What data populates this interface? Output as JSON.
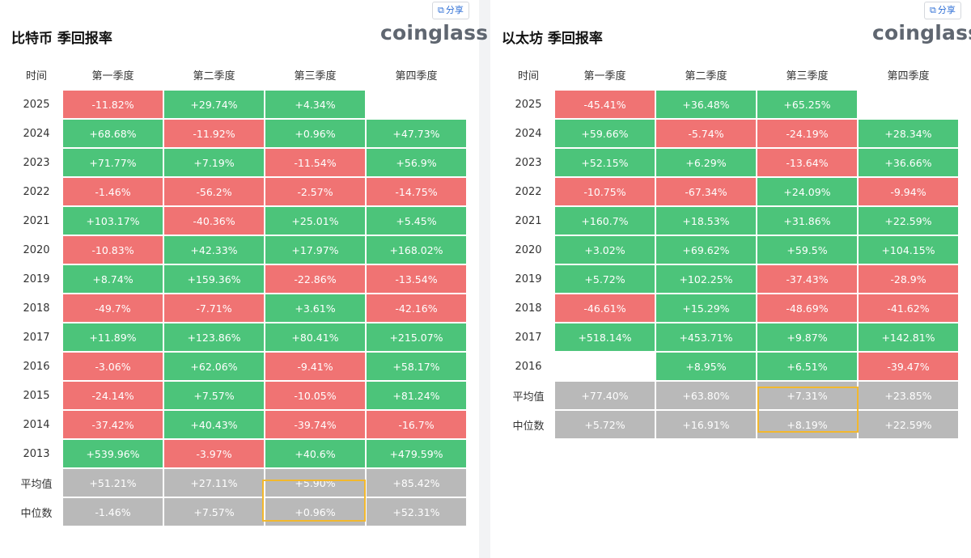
{
  "btc": {
    "title": "比特币 季回报率",
    "logo": "coinglass",
    "share_label": "分享",
    "share_icon": "share-icon",
    "headers": [
      "时间",
      "第一季度",
      "第二季度",
      "第三季度",
      "第四季度"
    ],
    "rows": [
      {
        "label": "2025",
        "cells": [
          "-11.82%",
          "+29.74%",
          "+4.34%",
          ""
        ]
      },
      {
        "label": "2024",
        "cells": [
          "+68.68%",
          "-11.92%",
          "+0.96%",
          "+47.73%"
        ]
      },
      {
        "label": "2023",
        "cells": [
          "+71.77%",
          "+7.19%",
          "-11.54%",
          "+56.9%"
        ]
      },
      {
        "label": "2022",
        "cells": [
          "-1.46%",
          "-56.2%",
          "-2.57%",
          "-14.75%"
        ]
      },
      {
        "label": "2021",
        "cells": [
          "+103.17%",
          "-40.36%",
          "+25.01%",
          "+5.45%"
        ]
      },
      {
        "label": "2020",
        "cells": [
          "-10.83%",
          "+42.33%",
          "+17.97%",
          "+168.02%"
        ]
      },
      {
        "label": "2019",
        "cells": [
          "+8.74%",
          "+159.36%",
          "-22.86%",
          "-13.54%"
        ]
      },
      {
        "label": "2018",
        "cells": [
          "-49.7%",
          "-7.71%",
          "+3.61%",
          "-42.16%"
        ]
      },
      {
        "label": "2017",
        "cells": [
          "+11.89%",
          "+123.86%",
          "+80.41%",
          "+215.07%"
        ]
      },
      {
        "label": "2016",
        "cells": [
          "-3.06%",
          "+62.06%",
          "-9.41%",
          "+58.17%"
        ]
      },
      {
        "label": "2015",
        "cells": [
          "-24.14%",
          "+7.57%",
          "-10.05%",
          "+81.24%"
        ]
      },
      {
        "label": "2014",
        "cells": [
          "-37.42%",
          "+40.43%",
          "-39.74%",
          "-16.7%"
        ]
      },
      {
        "label": "2013",
        "cells": [
          "+539.96%",
          "-3.97%",
          "+40.6%",
          "+479.59%"
        ]
      }
    ],
    "summary": [
      {
        "label": "平均值",
        "cells": [
          "+51.21%",
          "+27.11%",
          "+5.90%",
          "+85.42%"
        ]
      },
      {
        "label": "中位数",
        "cells": [
          "-1.46%",
          "+7.57%",
          "+0.96%",
          "+52.31%"
        ]
      }
    ]
  },
  "eth": {
    "title": "以太坊 季回报率",
    "logo": "coinglass",
    "share_label": "分享",
    "share_icon": "share-icon",
    "headers": [
      "时间",
      "第一季度",
      "第二季度",
      "第三季度",
      "第四季度"
    ],
    "rows": [
      {
        "label": "2025",
        "cells": [
          "-45.41%",
          "+36.48%",
          "+65.25%",
          ""
        ]
      },
      {
        "label": "2024",
        "cells": [
          "+59.66%",
          "-5.74%",
          "-24.19%",
          "+28.34%"
        ]
      },
      {
        "label": "2023",
        "cells": [
          "+52.15%",
          "+6.29%",
          "-13.64%",
          "+36.66%"
        ]
      },
      {
        "label": "2022",
        "cells": [
          "-10.75%",
          "-67.34%",
          "+24.09%",
          "-9.94%"
        ]
      },
      {
        "label": "2021",
        "cells": [
          "+160.7%",
          "+18.53%",
          "+31.86%",
          "+22.59%"
        ]
      },
      {
        "label": "2020",
        "cells": [
          "+3.02%",
          "+69.62%",
          "+59.5%",
          "+104.15%"
        ]
      },
      {
        "label": "2019",
        "cells": [
          "+5.72%",
          "+102.25%",
          "-37.43%",
          "-28.9%"
        ]
      },
      {
        "label": "2018",
        "cells": [
          "-46.61%",
          "+15.29%",
          "-48.69%",
          "-41.62%"
        ]
      },
      {
        "label": "2017",
        "cells": [
          "+518.14%",
          "+453.71%",
          "+9.87%",
          "+142.81%"
        ]
      },
      {
        "label": "2016",
        "cells": [
          "",
          "+8.95%",
          "+6.51%",
          "-39.47%"
        ]
      }
    ],
    "summary": [
      {
        "label": "平均值",
        "cells": [
          "+77.40%",
          "+63.80%",
          "+7.31%",
          "+23.85%"
        ]
      },
      {
        "label": "中位数",
        "cells": [
          "+5.72%",
          "+16.91%",
          "+8.19%",
          "+22.59%"
        ]
      }
    ]
  },
  "colors": {
    "positive": "#4cc47a",
    "negative": "#f07373",
    "summary": "#b9b9b9",
    "highlight": "#f2b82e"
  }
}
